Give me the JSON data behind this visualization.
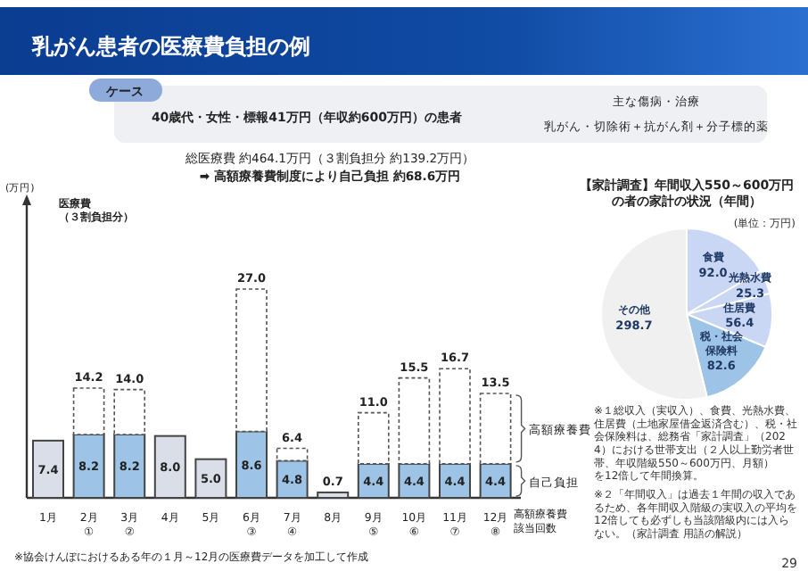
{
  "chart_data": [
    {
      "type": "bar",
      "stacked": true,
      "title": "乳がん患者の医療費負担の例",
      "ylabel": "医療費（３割負担分）",
      "categories": [
        "1月",
        "2月\n①",
        "3月\n②",
        "4月",
        "5月",
        "6月\n③",
        "7月\n④",
        "8月",
        "9月\n⑤",
        "10月\n⑥",
        "11月\n⑦",
        "12月\n⑧"
      ],
      "series": [
        {
          "name": "自己負担",
          "values": [
            7.4,
            8.2,
            8.2,
            8.0,
            5.0,
            8.6,
            4.8,
            0.7,
            4.4,
            4.4,
            4.4,
            4.4
          ],
          "colors": [
            "#d9dee8",
            "#9dc3e6",
            "#9dc3e6",
            "#d9dee8",
            "#d9dee8",
            "#9dc3e6",
            "#9dc3e6",
            "#d9dee8",
            "#9dc3e6",
            "#9dc3e6",
            "#9dc3e6",
            "#9dc3e6"
          ],
          "value_labels": [
            "7.4",
            "8.2",
            "8.2",
            "8.0",
            "5.0",
            "8.6",
            "4.8",
            "0.7",
            "4.4",
            "4.4",
            "4.4",
            "4.4"
          ]
        },
        {
          "name": "高額療養費",
          "color": "#ffffff",
          "line_style": "dashed",
          "values": [
            null,
            6.0,
            5.8,
            null,
            null,
            18.4,
            1.6,
            null,
            6.6,
            11.1,
            12.3,
            9.1
          ]
        }
      ],
      "totals": [
        null,
        "14.2",
        "14.0",
        null,
        null,
        "27.0",
        "6.4",
        null,
        "11.0",
        "15.5",
        "16.7",
        "13.5"
      ],
      "annotations": [
        "ケース",
        "40歳代・女性・標報41万円（年収約600万円）の患者",
        "主な傷病・治療",
        "乳がん・切除術＋抗がん剤＋分子標的薬",
        "総医療費 約464.1万円（３割負担分 約139.2万円）",
        "➡ 高額療養費制度により自己負担 約68.6万円",
        "(万円)",
        "高額療養費該当回数",
        "※協会けんぽにおけるある年の１月～12月の医療費データを加工して作成"
      ]
    },
    {
      "type": "pie",
      "title": "【家計調査】年間収入550～600万円の者の家計の状況（年間）",
      "subtitle": "(単位：万円)",
      "categories": [
        "食費",
        "光熱水費",
        "住居費",
        "税・社会保険料",
        "その他"
      ],
      "values": [
        92.0,
        25.3,
        56.4,
        82.6,
        298.7
      ],
      "colors": [
        "#c9d7f5",
        "#c9d7f5",
        "#c9d7f5",
        "#9dc3e6",
        "#f0f0f0"
      ],
      "value_labels": [
        "92.0",
        "25.3",
        "56.4",
        "82.6",
        "298.7"
      ],
      "annotations": [
        "※１総収入（実収入）、食費、光熱水費、住居費（土地家屋借金返済含む）、税・社会保険料は、総務省「家計調査」（2024）における世帯支出（２人以上勤労者世帯、年収階級550～600万円、月額）を12倍して年間換算。",
        "※２「年間収入」は過去１年間の収入であるため、各年間収入階級の実収入の平均を12倍しても必ずしも当該階級内には入らない。（家計調査 用語の解説）",
        "29"
      ]
    }
  ]
}
